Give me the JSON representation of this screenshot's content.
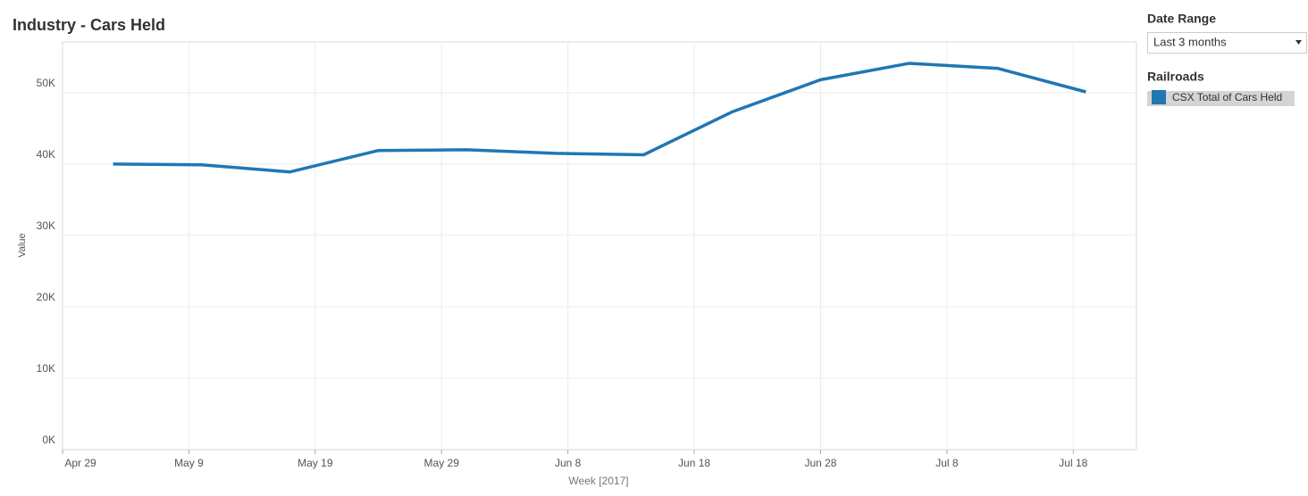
{
  "chart_data": {
    "type": "line",
    "title": "Industry - Cars Held",
    "filter_label": "Date Range",
    "filter_value": "Last 3 months",
    "legend_title": "Railroads",
    "x_label": "Week [2017]",
    "y_label": "Value",
    "x": [
      "2017-05-03",
      "2017-05-10",
      "2017-05-17",
      "2017-05-24",
      "2017-05-31",
      "2017-06-07",
      "2017-06-14",
      "2017-06-21",
      "2017-06-28",
      "2017-07-05",
      "2017-07-12",
      "2017-07-19"
    ],
    "series": [
      {
        "name": "CSX Total of Cars Held",
        "color": "#1f77b4",
        "values": [
          40000,
          39900,
          38900,
          41900,
          42000,
          41500,
          41300,
          47300,
          51800,
          54100,
          53400,
          50100
        ]
      }
    ],
    "xlim": [
      "2017-04-29",
      "2017-07-23"
    ],
    "xticks": [
      {
        "value": "2017-04-29",
        "label": "Apr 29"
      },
      {
        "value": "2017-05-09",
        "label": "May 9"
      },
      {
        "value": "2017-05-19",
        "label": "May 19"
      },
      {
        "value": "2017-05-29",
        "label": "May 29"
      },
      {
        "value": "2017-06-08",
        "label": "Jun 8"
      },
      {
        "value": "2017-06-18",
        "label": "Jun 18"
      },
      {
        "value": "2017-06-28",
        "label": "Jun 28"
      },
      {
        "value": "2017-07-08",
        "label": "Jul 8"
      },
      {
        "value": "2017-07-18",
        "label": "Jul 18"
      }
    ],
    "ylim": [
      0,
      57100
    ],
    "yticks": [
      {
        "value": 0,
        "label": "0K"
      },
      {
        "value": 10000,
        "label": "10K"
      },
      {
        "value": 20000,
        "label": "20K"
      },
      {
        "value": 30000,
        "label": "30K"
      },
      {
        "value": 40000,
        "label": "40K"
      },
      {
        "value": 50000,
        "label": "50K"
      }
    ],
    "grid": true
  }
}
